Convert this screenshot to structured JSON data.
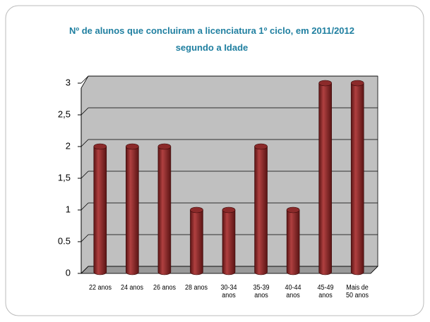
{
  "chart_data": {
    "type": "bar",
    "title": "Nº de alunos que concluiram a licenciatura 1º ciclo, em 2011/2012 segundo a Idade",
    "categories": [
      "22 anos",
      "24 anos",
      "26 anos",
      "28 anos",
      "30-34 anos",
      "35-39 anos",
      "40-44 anos",
      "45-49 anos",
      "Mais de 50 anos"
    ],
    "values": [
      2,
      2,
      2,
      1,
      1,
      2,
      1,
      3,
      3
    ],
    "color": "#8b2a2a",
    "ylim": [
      0,
      3
    ],
    "yticks": [
      0,
      0.5,
      1,
      {
        "value": 1.5,
        "label": "1,5"
      },
      2,
      {
        "value": 2.5,
        "label": "2,5"
      },
      3
    ],
    "grid": true
  }
}
